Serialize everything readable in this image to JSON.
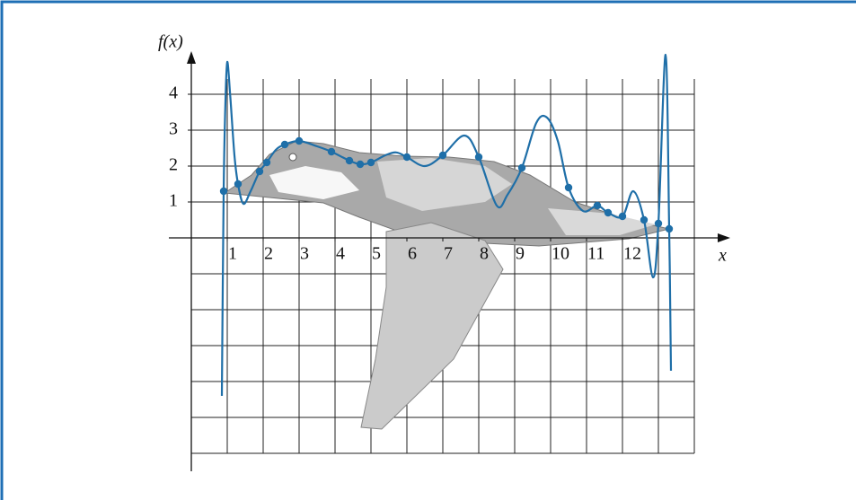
{
  "chart_data": {
    "type": "line",
    "ylabel": "f(x)",
    "xlabel": "x",
    "xlim": [
      0,
      15
    ],
    "ylim": [
      -6.5,
      5.2
    ],
    "xticks": [
      1,
      2,
      3,
      4,
      5,
      6,
      7,
      8,
      9,
      10,
      11,
      12
    ],
    "yticks": [
      1,
      2,
      3,
      4
    ],
    "xgrid": [
      0,
      1,
      2,
      3,
      4,
      5,
      6,
      7,
      8,
      9,
      10,
      11,
      12,
      13,
      14
    ],
    "ygrid": [
      -6,
      -5,
      -4,
      -3,
      -2,
      -1,
      0,
      1,
      2,
      3,
      4
    ],
    "curve": {
      "color": "#1f6fa8",
      "x": [
        0.85,
        0.9,
        0.95,
        1.0,
        1.08,
        1.2,
        1.3,
        1.45,
        1.65,
        1.9,
        2.1,
        2.35,
        2.6,
        3.0,
        3.5,
        3.9,
        4.4,
        4.7,
        5.0,
        5.4,
        5.7,
        6.0,
        6.5,
        7.0,
        7.6,
        8.0,
        8.5,
        8.8,
        9.2,
        9.6,
        9.9,
        10.2,
        10.5,
        10.9,
        11.3,
        11.6,
        12.0,
        12.3,
        12.6,
        12.85,
        13.0,
        13.2,
        13.3,
        13.35
      ],
      "values": [
        -4.4,
        1.3,
        3.8,
        4.9,
        4.0,
        2.3,
        1.5,
        0.95,
        1.3,
        1.85,
        2.1,
        2.45,
        2.6,
        2.7,
        2.55,
        2.4,
        2.15,
        2.05,
        2.1,
        2.3,
        2.38,
        2.25,
        2.0,
        2.3,
        2.85,
        2.25,
        0.9,
        1.2,
        1.95,
        3.2,
        3.35,
        2.7,
        1.4,
        0.75,
        0.9,
        0.7,
        0.6,
        1.3,
        0.5,
        -1.1,
        0.4,
        5.1,
        0.25,
        -3.7
      ]
    },
    "points": {
      "color": "#1f6fa8",
      "x": [
        0.9,
        1.3,
        1.9,
        2.1,
        2.6,
        3.0,
        3.9,
        4.4,
        4.7,
        5.0,
        6.0,
        7.0,
        8.0,
        9.2,
        10.5,
        11.3,
        11.6,
        12.0,
        12.6,
        13.0,
        13.3
      ],
      "values": [
        1.3,
        1.5,
        1.85,
        2.1,
        2.6,
        2.7,
        2.4,
        2.15,
        2.05,
        2.1,
        2.25,
        2.3,
        2.25,
        1.95,
        1.4,
        0.9,
        0.7,
        0.6,
        0.5,
        0.4,
        0.25
      ]
    }
  }
}
